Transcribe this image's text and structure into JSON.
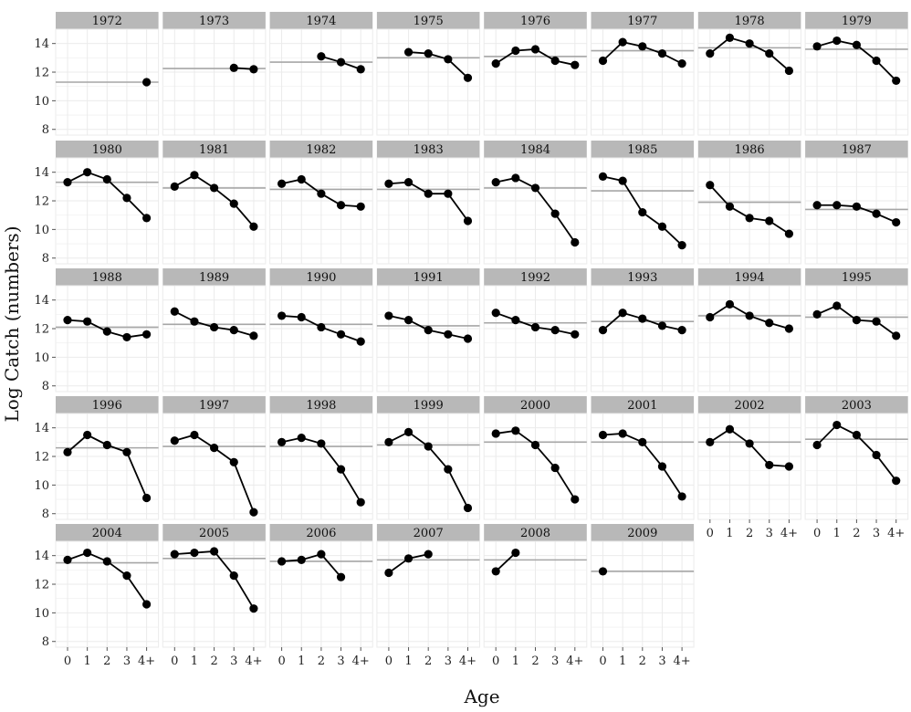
{
  "chart_data": {
    "type": "line",
    "layout": "faceted",
    "xlabel": "Age",
    "ylabel": "Log Catch (numbers)",
    "x_categories": [
      "0",
      "1",
      "2",
      "3",
      "4+"
    ],
    "y_ticks": [
      8,
      10,
      12,
      14
    ],
    "ylim": [
      7.6,
      15.0
    ],
    "grid": true,
    "colors": {
      "points": "#000000",
      "reference_line": "#a6a6a6",
      "strip_bg": "#b8b8b8",
      "grid": "#ebebeb"
    },
    "panels": [
      {
        "title": "1972",
        "mean": 11.3,
        "values": [
          null,
          null,
          null,
          null,
          11.3
        ]
      },
      {
        "title": "1973",
        "mean": 12.25,
        "values": [
          null,
          null,
          null,
          12.3,
          12.2
        ]
      },
      {
        "title": "1974",
        "mean": 12.7,
        "values": [
          null,
          null,
          13.1,
          12.7,
          12.2
        ]
      },
      {
        "title": "1975",
        "mean": 13.0,
        "values": [
          null,
          13.4,
          13.3,
          12.9,
          11.6
        ]
      },
      {
        "title": "1976",
        "mean": 13.1,
        "values": [
          12.6,
          13.5,
          13.6,
          12.8,
          12.5
        ]
      },
      {
        "title": "1977",
        "mean": 13.5,
        "values": [
          12.8,
          14.1,
          13.8,
          13.3,
          12.6
        ]
      },
      {
        "title": "1978",
        "mean": 13.7,
        "values": [
          13.3,
          14.4,
          14.0,
          13.3,
          12.1
        ]
      },
      {
        "title": "1979",
        "mean": 13.6,
        "values": [
          13.8,
          14.2,
          13.9,
          12.8,
          11.4
        ]
      },
      {
        "title": "1980",
        "mean": 13.3,
        "values": [
          13.3,
          14.0,
          13.5,
          12.2,
          10.8
        ]
      },
      {
        "title": "1981",
        "mean": 12.9,
        "values": [
          13.0,
          13.8,
          12.9,
          11.8,
          10.2
        ]
      },
      {
        "title": "1982",
        "mean": 12.8,
        "values": [
          13.2,
          13.5,
          12.5,
          11.7,
          11.6
        ]
      },
      {
        "title": "1983",
        "mean": 12.8,
        "values": [
          13.2,
          13.3,
          12.5,
          12.5,
          10.6
        ]
      },
      {
        "title": "1984",
        "mean": 12.9,
        "values": [
          13.3,
          13.6,
          12.9,
          11.1,
          9.1
        ]
      },
      {
        "title": "1985",
        "mean": 12.7,
        "values": [
          13.7,
          13.4,
          11.2,
          10.2,
          8.9
        ]
      },
      {
        "title": "1986",
        "mean": 11.9,
        "values": [
          13.1,
          11.6,
          10.8,
          10.6,
          9.7
        ]
      },
      {
        "title": "1987",
        "mean": 11.4,
        "values": [
          11.7,
          11.7,
          11.6,
          11.1,
          10.5
        ]
      },
      {
        "title": "1988",
        "mean": 12.1,
        "values": [
          12.6,
          12.5,
          11.8,
          11.4,
          11.6
        ]
      },
      {
        "title": "1989",
        "mean": 12.3,
        "values": [
          13.2,
          12.5,
          12.1,
          11.9,
          11.5
        ]
      },
      {
        "title": "1990",
        "mean": 12.3,
        "values": [
          12.9,
          12.8,
          12.1,
          11.6,
          11.1
        ]
      },
      {
        "title": "1991",
        "mean": 12.2,
        "values": [
          12.9,
          12.6,
          11.9,
          11.6,
          11.3
        ]
      },
      {
        "title": "1992",
        "mean": 12.4,
        "values": [
          13.1,
          12.6,
          12.1,
          11.9,
          11.6
        ]
      },
      {
        "title": "1993",
        "mean": 12.5,
        "values": [
          11.9,
          13.1,
          12.7,
          12.2,
          11.9
        ]
      },
      {
        "title": "1994",
        "mean": 12.9,
        "values": [
          12.8,
          13.7,
          12.9,
          12.4,
          12.0
        ]
      },
      {
        "title": "1995",
        "mean": 12.8,
        "values": [
          13.0,
          13.6,
          12.6,
          12.5,
          11.5
        ]
      },
      {
        "title": "1996",
        "mean": 12.6,
        "values": [
          12.3,
          13.5,
          12.8,
          12.3,
          9.1
        ]
      },
      {
        "title": "1997",
        "mean": 12.7,
        "values": [
          13.1,
          13.5,
          12.6,
          11.6,
          8.1
        ]
      },
      {
        "title": "1998",
        "mean": 12.7,
        "values": [
          13.0,
          13.3,
          12.9,
          11.1,
          8.8
        ]
      },
      {
        "title": "1999",
        "mean": 12.8,
        "values": [
          13.0,
          13.7,
          12.7,
          11.1,
          8.4
        ]
      },
      {
        "title": "2000",
        "mean": 13.0,
        "values": [
          13.6,
          13.8,
          12.8,
          11.2,
          9.0
        ]
      },
      {
        "title": "2001",
        "mean": 13.0,
        "values": [
          13.5,
          13.6,
          13.0,
          11.3,
          9.2
        ]
      },
      {
        "title": "2002",
        "mean": 13.0,
        "values": [
          13.0,
          13.9,
          12.9,
          11.4,
          11.3
        ]
      },
      {
        "title": "2003",
        "mean": 13.2,
        "values": [
          12.8,
          14.2,
          13.5,
          12.1,
          10.3
        ]
      },
      {
        "title": "2004",
        "mean": 13.5,
        "values": [
          13.7,
          14.2,
          13.6,
          12.6,
          10.6
        ]
      },
      {
        "title": "2005",
        "mean": 13.8,
        "values": [
          14.1,
          14.2,
          14.3,
          12.6,
          10.3
        ]
      },
      {
        "title": "2006",
        "mean": 13.6,
        "values": [
          13.6,
          13.7,
          14.1,
          12.5,
          null
        ]
      },
      {
        "title": "2007",
        "mean": 13.7,
        "values": [
          12.8,
          13.8,
          14.1,
          null,
          null
        ]
      },
      {
        "title": "2008",
        "mean": 13.7,
        "values": [
          12.9,
          14.2,
          null,
          null,
          null
        ]
      },
      {
        "title": "2009",
        "mean": 12.9,
        "values": [
          12.9,
          null,
          null,
          null,
          null
        ]
      }
    ]
  }
}
